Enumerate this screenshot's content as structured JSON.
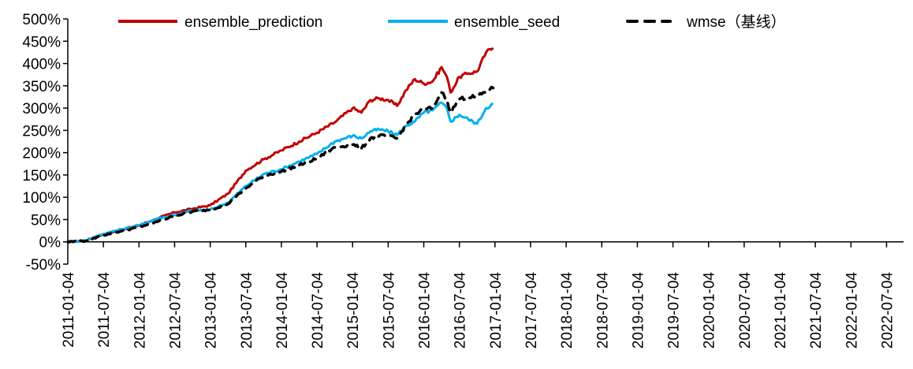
{
  "chart_data": {
    "type": "line",
    "title": "",
    "xlabel": "",
    "ylabel": "",
    "ylim": [
      -50,
      500
    ],
    "y_ticks": [
      "-50%",
      "0%",
      "50%",
      "100%",
      "150%",
      "200%",
      "250%",
      "300%",
      "350%",
      "400%",
      "450%",
      "500%"
    ],
    "y_tick_values": [
      -50,
      0,
      50,
      100,
      150,
      200,
      250,
      300,
      350,
      400,
      450,
      500
    ],
    "x_ticks": [
      "2011-01-04",
      "2011-07-04",
      "2012-01-04",
      "2012-07-04",
      "2013-01-04",
      "2013-07-04",
      "2014-01-04",
      "2014-07-04",
      "2015-01-04",
      "2015-07-04",
      "2016-01-04",
      "2016-07-04",
      "2017-01-04",
      "2017-07-04",
      "2018-01-04",
      "2018-07-04",
      "2019-01-04",
      "2019-07-04",
      "2020-01-04",
      "2020-07-04",
      "2021-01-04",
      "2021-07-04",
      "2022-01-04",
      "2022-07-04"
    ],
    "grid": false,
    "legend_position": "top",
    "x": [
      0,
      0.5,
      1,
      1.5,
      2,
      2.5,
      3,
      3.5,
      4,
      4.5,
      5,
      5.5,
      6,
      6.5,
      7,
      7.5,
      8,
      8.25,
      8.5,
      8.75,
      9,
      9.25,
      9.5,
      9.75,
      10,
      10.25,
      10.5,
      10.65,
      10.75,
      11,
      11.25,
      11.5,
      11.75,
      11.95
    ],
    "x_unit": "half-years since 2011-01-04",
    "series": [
      {
        "name": "ensemble_prediction",
        "color": "#c00000",
        "dash": "solid",
        "values": [
          0,
          3,
          17,
          27,
          37,
          52,
          66,
          74,
          82,
          108,
          160,
          185,
          205,
          225,
          245,
          268,
          300,
          290,
          318,
          322,
          318,
          305,
          340,
          365,
          355,
          360,
          392,
          370,
          335,
          370,
          378,
          382,
          425,
          435
        ]
      },
      {
        "name": "ensemble_seed",
        "color": "#00b0f0",
        "dash": "solid",
        "values": [
          0,
          3,
          18,
          28,
          37,
          52,
          60,
          70,
          72,
          88,
          125,
          152,
          163,
          180,
          197,
          225,
          238,
          232,
          248,
          252,
          248,
          240,
          260,
          270,
          290,
          295,
          312,
          300,
          270,
          285,
          275,
          265,
          300,
          310
        ]
      },
      {
        "name": "wmse（基线）",
        "color": "#000000",
        "dash": "dashed",
        "values": [
          0,
          2,
          15,
          24,
          33,
          45,
          58,
          68,
          72,
          85,
          120,
          148,
          158,
          172,
          187,
          212,
          218,
          210,
          232,
          238,
          237,
          232,
          262,
          285,
          298,
          300,
          335,
          320,
          290,
          320,
          325,
          325,
          338,
          345
        ]
      }
    ]
  }
}
